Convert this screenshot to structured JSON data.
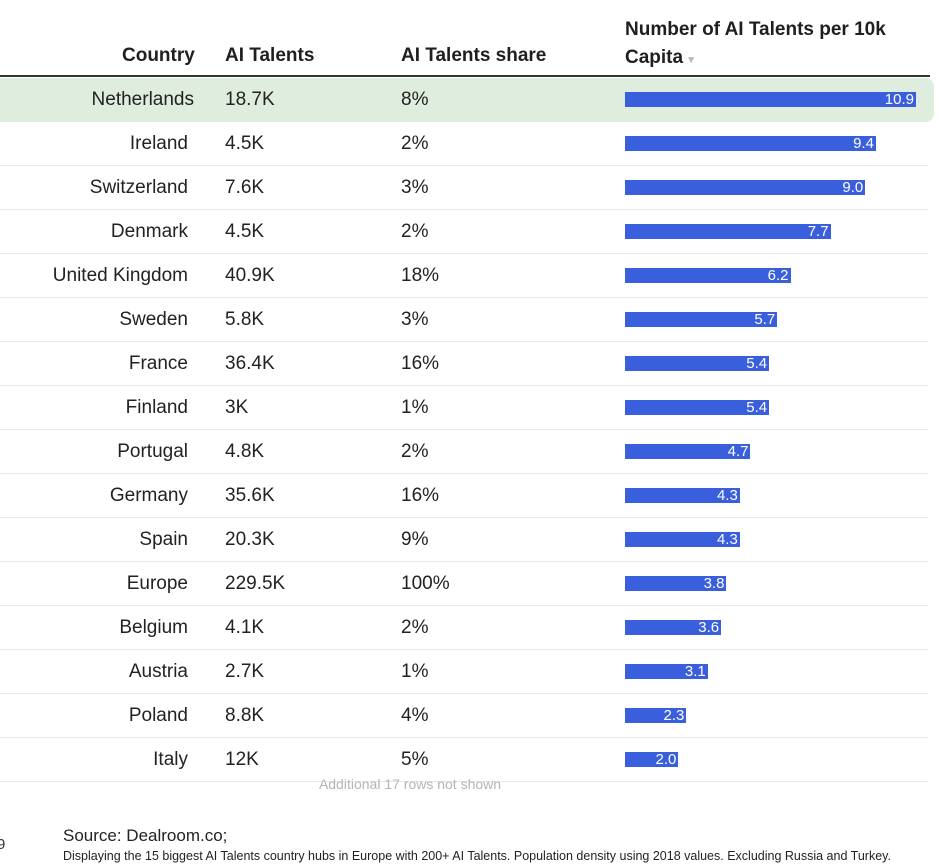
{
  "chart_data": {
    "type": "table",
    "columns": [
      "Country",
      "AI Talents",
      "AI Talents share",
      "Number of AI Talents per 10k Capita"
    ],
    "sort_indicator": "▾",
    "bar_color": "#3a5fdc",
    "highlight_color": "#deeddd",
    "rows": [
      {
        "country": "Netherlands",
        "talents": "18.7K",
        "share": "8%",
        "per10k": 10.9,
        "label": "10.9"
      },
      {
        "country": "Ireland",
        "talents": "4.5K",
        "share": "2%",
        "per10k": 9.4,
        "label": "9.4"
      },
      {
        "country": "Switzerland",
        "talents": "7.6K",
        "share": "3%",
        "per10k": 9.0,
        "label": "9.0"
      },
      {
        "country": "Denmark",
        "talents": "4.5K",
        "share": "2%",
        "per10k": 7.7,
        "label": "7.7"
      },
      {
        "country": "United Kingdom",
        "talents": "40.9K",
        "share": "18%",
        "per10k": 6.2,
        "label": "6.2"
      },
      {
        "country": "Sweden",
        "talents": "5.8K",
        "share": "3%",
        "per10k": 5.7,
        "label": "5.7"
      },
      {
        "country": "France",
        "talents": "36.4K",
        "share": "16%",
        "per10k": 5.4,
        "label": "5.4"
      },
      {
        "country": "Finland",
        "talents": "3K",
        "share": "1%",
        "per10k": 5.4,
        "label": "5.4"
      },
      {
        "country": "Portugal",
        "talents": "4.8K",
        "share": "2%",
        "per10k": 4.7,
        "label": "4.7"
      },
      {
        "country": "Germany",
        "talents": "35.6K",
        "share": "16%",
        "per10k": 4.3,
        "label": "4.3"
      },
      {
        "country": "Spain",
        "talents": "20.3K",
        "share": "9%",
        "per10k": 4.3,
        "label": "4.3"
      },
      {
        "country": "Europe",
        "talents": "229.5K",
        "share": "100%",
        "per10k": 3.8,
        "label": "3.8"
      },
      {
        "country": "Belgium",
        "talents": "4.1K",
        "share": "2%",
        "per10k": 3.6,
        "label": "3.6"
      },
      {
        "country": "Austria",
        "talents": "2.7K",
        "share": "1%",
        "per10k": 3.1,
        "label": "3.1"
      },
      {
        "country": "Poland",
        "talents": "8.8K",
        "share": "4%",
        "per10k": 2.3,
        "label": "2.3"
      },
      {
        "country": "Italy",
        "talents": "12K",
        "share": "5%",
        "per10k": 2.0,
        "label": "2.0"
      }
    ],
    "more_rows": "Additional 17 rows not shown"
  },
  "footer": {
    "source": "Source:  Dealroom.co;",
    "note": "Displaying the 15 biggest AI Talents country hubs in Europe with 200+ AI Talents. Population density using 2018 values. Excluding  Russia and Turkey.",
    "edge_text": "9"
  }
}
